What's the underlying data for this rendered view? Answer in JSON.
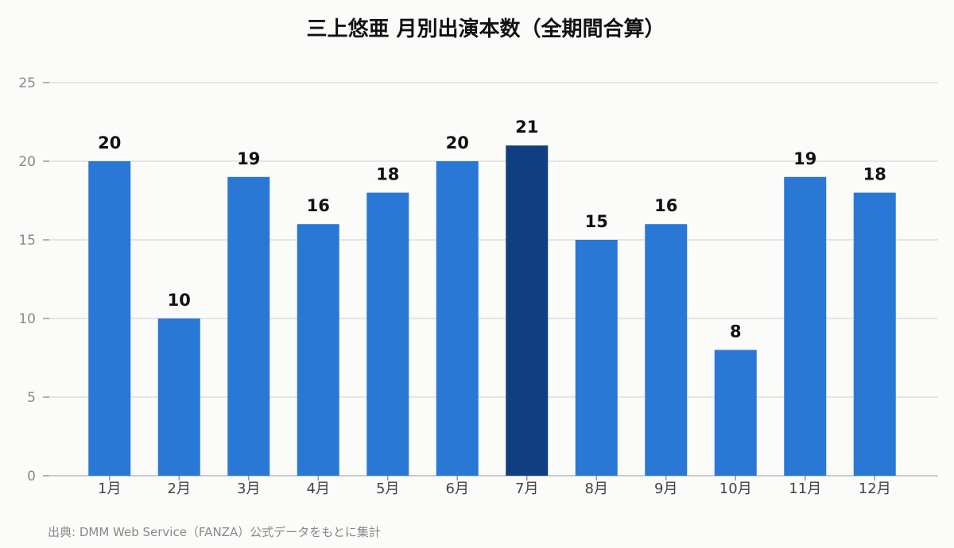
{
  "chart_data": {
    "type": "bar",
    "title": "三上悠亜 月別出演本数（全期間合算）",
    "categories": [
      "1月",
      "2月",
      "3月",
      "4月",
      "5月",
      "6月",
      "7月",
      "8月",
      "9月",
      "10月",
      "11月",
      "12月"
    ],
    "values": [
      20,
      10,
      19,
      16,
      18,
      20,
      21,
      15,
      16,
      8,
      19,
      18
    ],
    "highlight_index": 6,
    "ylim": [
      0,
      25
    ],
    "yticks": [
      0,
      5,
      10,
      15,
      20,
      25
    ],
    "grid": true,
    "colors": {
      "bar": "#2a78d6",
      "highlight": "#0f3f80",
      "grid": "#dedede",
      "axis": "#bbbbbb"
    },
    "source": "出典: DMM Web Service（FANZA）公式データをもとに集計"
  }
}
